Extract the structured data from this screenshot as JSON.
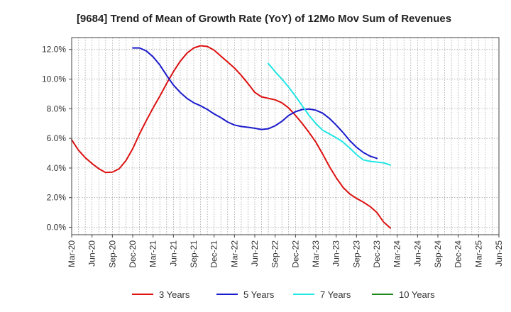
{
  "chart_data": {
    "type": "line",
    "title": "[9684]  Trend of Mean of Growth Rate (YoY) of 12Mo Mov Sum of Revenues",
    "xlabel": "",
    "ylabel": "",
    "ylim": [
      -0.5,
      12.8
    ],
    "yticks": [
      0,
      2,
      4,
      6,
      8,
      10,
      12
    ],
    "ytick_labels": [
      "0.0%",
      "2.0%",
      "4.0%",
      "6.0%",
      "8.0%",
      "10.0%",
      "12.0%"
    ],
    "xtick_labels": [
      "Mar-20",
      "Jun-20",
      "Sep-20",
      "Dec-20",
      "Mar-21",
      "Jun-21",
      "Sep-21",
      "Dec-21",
      "Mar-22",
      "Jun-22",
      "Sep-22",
      "Dec-22",
      "Mar-23",
      "Jun-23",
      "Sep-23",
      "Dec-23",
      "Mar-24",
      "Jun-24",
      "Sep-24",
      "Dec-24",
      "Mar-25",
      "Jun-25"
    ],
    "grid": true,
    "series": [
      {
        "name": "3 Years",
        "color": "#dd1111",
        "start_index": 0,
        "values": [
          5.9,
          5.2,
          4.7,
          4.3,
          3.95,
          3.7,
          3.72,
          3.95,
          4.5,
          5.3,
          6.3,
          7.2,
          8.05,
          8.85,
          9.7,
          10.5,
          11.2,
          11.75,
          12.1,
          12.25,
          12.2,
          11.95,
          11.55,
          11.15,
          10.75,
          10.25,
          9.7,
          9.1,
          8.8,
          8.7,
          8.6,
          8.4,
          8.05,
          7.55,
          7.0,
          6.4,
          5.75,
          4.95,
          4.1,
          3.35,
          2.7,
          2.25,
          1.95,
          1.7,
          1.4,
          1.0,
          0.35,
          -0.05
        ]
      },
      {
        "name": "5 Years",
        "color": "#1a1acc",
        "start_index": 9,
        "values": [
          12.1,
          12.1,
          11.9,
          11.5,
          10.95,
          10.25,
          9.6,
          9.1,
          8.7,
          8.4,
          8.2,
          7.95,
          7.65,
          7.4,
          7.1,
          6.9,
          6.8,
          6.75,
          6.68,
          6.6,
          6.65,
          6.85,
          7.15,
          7.55,
          7.8,
          7.95,
          7.98,
          7.9,
          7.7,
          7.35,
          6.9,
          6.4,
          5.85,
          5.4,
          5.05,
          4.8,
          4.65
        ]
      },
      {
        "name": "7 Years",
        "color": "#22e6e6",
        "start_index": 29,
        "values": [
          11.05,
          10.5,
          10.0,
          9.45,
          8.85,
          8.2,
          7.55,
          7.0,
          6.55,
          6.3,
          6.05,
          5.75,
          5.35,
          4.9,
          4.55,
          4.45,
          4.4,
          4.35,
          4.2
        ]
      },
      {
        "name": "10 Years",
        "color": "#1e8a1e",
        "start_index": 0,
        "values": []
      }
    ]
  }
}
